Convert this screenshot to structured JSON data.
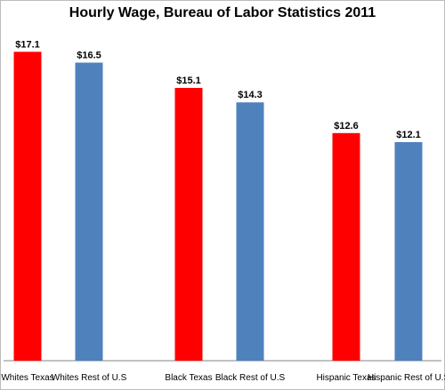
{
  "chart_data": {
    "type": "bar",
    "title": "Hourly Wage, Bureau of Labor Statistics 2011",
    "xlabel": "",
    "ylabel": "",
    "ylim": [
      0,
      18
    ],
    "grid": false,
    "legend": "none",
    "categories": [
      "Whites Texas",
      "Whites Rest of U.S",
      "Black Texas",
      "Black Rest of U.S",
      "Hispanic Texas",
      "Hispanic Rest of U.S"
    ],
    "values": [
      17.1,
      16.5,
      15.1,
      14.3,
      12.6,
      12.1
    ],
    "data_labels": [
      "$17.1",
      "$16.5",
      "$15.1",
      "$14.3",
      "$12.6",
      "$12.1"
    ],
    "colors": [
      "#ff0000",
      "#4f81bd",
      "#ff0000",
      "#4f81bd",
      "#ff0000",
      "#4f81bd"
    ]
  }
}
